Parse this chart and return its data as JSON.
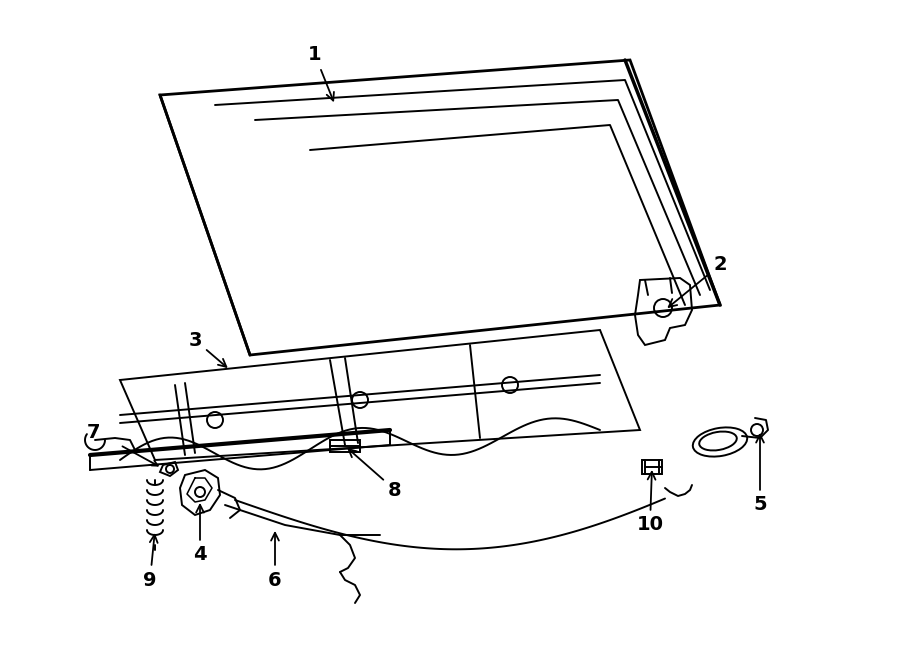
{
  "bg_color": "#ffffff",
  "line_color": "#000000",
  "fig_width": 9.0,
  "fig_height": 6.61,
  "dpi": 100,
  "font_size": 14
}
